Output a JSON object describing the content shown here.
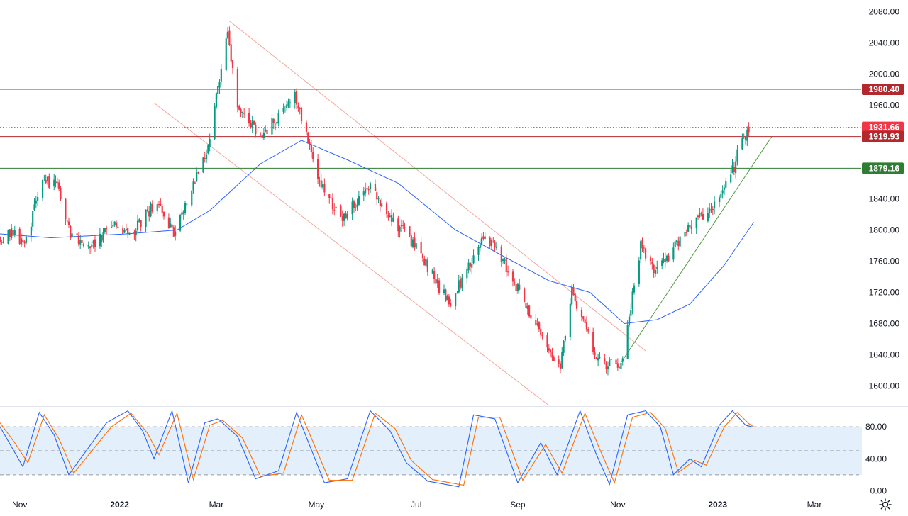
{
  "chart_data": [
    {
      "type": "candlestick",
      "title": "",
      "x_axis": {
        "ticks": [
          "Nov",
          "2022",
          "Mar",
          "May",
          "Jul",
          "Sep",
          "Nov",
          "2023",
          "Mar"
        ],
        "range": [
          "2021-10-20",
          "2023-03-30"
        ]
      },
      "y_axis": {
        "ticks": [
          "1600.00",
          "1640.00",
          "1680.00",
          "1720.00",
          "1760.00",
          "1800.00",
          "1840.00",
          "1880.00",
          "1920.00",
          "1960.00",
          "2000.00",
          "2040.00",
          "2080.00"
        ],
        "range": [
          1575,
          2095
        ],
        "position": "right"
      },
      "horizontal_levels": [
        {
          "label": "1980.40",
          "value": 1980.4,
          "color": "#b2282d",
          "style": "solid"
        },
        {
          "label": "1931.66",
          "value": 1931.66,
          "color": "#f23645",
          "style": "dotted"
        },
        {
          "label": "1919.93",
          "value": 1919.93,
          "color": "#b2282d",
          "style": "solid"
        },
        {
          "label": "1879.16",
          "value": 1879.16,
          "color": "#2e7d32",
          "style": "solid"
        }
      ],
      "price_path": [
        {
          "date": "2021-10-20",
          "close": 1790
        },
        {
          "date": "2021-10-28",
          "close": 1795
        },
        {
          "date": "2021-11-04",
          "close": 1785
        },
        {
          "date": "2021-11-16",
          "close": 1865
        },
        {
          "date": "2021-11-25",
          "close": 1855
        },
        {
          "date": "2021-12-02",
          "close": 1790
        },
        {
          "date": "2021-12-15",
          "close": 1780
        },
        {
          "date": "2021-12-28",
          "close": 1805
        },
        {
          "date": "2022-01-10",
          "close": 1800
        },
        {
          "date": "2022-01-25",
          "close": 1840
        },
        {
          "date": "2022-02-03",
          "close": 1795
        },
        {
          "date": "2022-02-24",
          "close": 1910
        },
        {
          "date": "2022-03-08",
          "close": 2050
        },
        {
          "date": "2022-03-14",
          "close": 1960
        },
        {
          "date": "2022-03-29",
          "close": 1920
        },
        {
          "date": "2022-04-18",
          "close": 1975
        },
        {
          "date": "2022-05-02",
          "close": 1870
        },
        {
          "date": "2022-05-16",
          "close": 1810
        },
        {
          "date": "2022-06-03",
          "close": 1860
        },
        {
          "date": "2022-06-14",
          "close": 1820
        },
        {
          "date": "2022-07-01",
          "close": 1780
        },
        {
          "date": "2022-07-21",
          "close": 1705
        },
        {
          "date": "2022-08-12",
          "close": 1795
        },
        {
          "date": "2022-08-26",
          "close": 1750
        },
        {
          "date": "2022-09-15",
          "close": 1665
        },
        {
          "date": "2022-09-27",
          "close": 1625
        },
        {
          "date": "2022-10-04",
          "close": 1720
        },
        {
          "date": "2022-10-20",
          "close": 1630
        },
        {
          "date": "2022-11-03",
          "close": 1630
        },
        {
          "date": "2022-11-15",
          "close": 1780
        },
        {
          "date": "2022-11-25",
          "close": 1745
        },
        {
          "date": "2022-12-13",
          "close": 1800
        },
        {
          "date": "2022-12-30",
          "close": 1830
        },
        {
          "date": "2023-01-11",
          "close": 1880
        },
        {
          "date": "2023-01-16",
          "close": 1920
        },
        {
          "date": "2023-01-20",
          "close": 1925
        }
      ],
      "moving_average": [
        {
          "date": "2021-10-20",
          "value": 1795
        },
        {
          "date": "2021-11-20",
          "value": 1790
        },
        {
          "date": "2022-01-05",
          "value": 1795
        },
        {
          "date": "2022-02-05",
          "value": 1800
        },
        {
          "date": "2022-02-25",
          "value": 1825
        },
        {
          "date": "2022-03-28",
          "value": 1885
        },
        {
          "date": "2022-04-22",
          "value": 1915
        },
        {
          "date": "2022-05-20",
          "value": 1890
        },
        {
          "date": "2022-06-20",
          "value": 1860
        },
        {
          "date": "2022-07-25",
          "value": 1800
        },
        {
          "date": "2022-08-20",
          "value": 1770
        },
        {
          "date": "2022-09-20",
          "value": 1735
        },
        {
          "date": "2022-10-15",
          "value": 1720
        },
        {
          "date": "2022-11-05",
          "value": 1680
        },
        {
          "date": "2022-11-25",
          "value": 1685
        },
        {
          "date": "2022-12-15",
          "value": 1705
        },
        {
          "date": "2023-01-05",
          "value": 1755
        },
        {
          "date": "2023-01-23",
          "value": 1810
        }
      ],
      "trend_lines": [
        {
          "name": "channel-upper",
          "color": "#f4a8a0",
          "from": {
            "date": "2022-03-09",
            "value": 2068
          },
          "to": {
            "date": "2022-11-18",
            "value": 1645
          }
        },
        {
          "name": "channel-lower",
          "color": "#f4a8a0",
          "from": {
            "date": "2022-01-22",
            "value": 1963
          },
          "to": {
            "date": "2022-09-20",
            "value": 1575
          }
        },
        {
          "name": "ascending-support",
          "color": "#4f9a3d",
          "from": {
            "date": "2022-11-03",
            "value": 1630
          },
          "to": {
            "date": "2023-02-03",
            "value": 1920
          }
        }
      ],
      "up_color": "#089981",
      "down_color": "#f23645",
      "ma_color": "#2962ff"
    },
    {
      "type": "line",
      "title": "",
      "y_axis": {
        "ticks": [
          "0.00",
          "40.00",
          "80.00"
        ],
        "range": [
          -5,
          105
        ],
        "position": "right"
      },
      "guide_levels": [
        20,
        50,
        80
      ],
      "band": [
        20,
        80
      ],
      "band_color": "#e3effb",
      "series": [
        {
          "color": "#2962ff",
          "points": [
            {
              "date": "2021-10-20",
              "value": 80
            },
            {
              "date": "2021-10-27",
              "value": 55
            },
            {
              "date": "2021-11-03",
              "value": 30
            },
            {
              "date": "2021-11-13",
              "value": 98
            },
            {
              "date": "2021-11-22",
              "value": 70
            },
            {
              "date": "2021-12-01",
              "value": 20
            },
            {
              "date": "2021-12-24",
              "value": 85
            },
            {
              "date": "2022-01-06",
              "value": 100
            },
            {
              "date": "2022-01-15",
              "value": 75
            },
            {
              "date": "2022-01-22",
              "value": 40
            },
            {
              "date": "2022-02-02",
              "value": 100
            },
            {
              "date": "2022-02-12",
              "value": 10
            },
            {
              "date": "2022-02-22",
              "value": 85
            },
            {
              "date": "2022-03-02",
              "value": 90
            },
            {
              "date": "2022-03-14",
              "value": 68
            },
            {
              "date": "2022-03-25",
              "value": 15
            },
            {
              "date": "2022-04-08",
              "value": 25
            },
            {
              "date": "2022-04-19",
              "value": 98
            },
            {
              "date": "2022-05-06",
              "value": 10
            },
            {
              "date": "2022-05-20",
              "value": 15
            },
            {
              "date": "2022-06-03",
              "value": 100
            },
            {
              "date": "2022-06-15",
              "value": 75
            },
            {
              "date": "2022-06-25",
              "value": 35
            },
            {
              "date": "2022-07-08",
              "value": 12
            },
            {
              "date": "2022-07-27",
              "value": 5
            },
            {
              "date": "2022-08-05",
              "value": 95
            },
            {
              "date": "2022-08-18",
              "value": 90
            },
            {
              "date": "2022-09-01",
              "value": 10
            },
            {
              "date": "2022-09-15",
              "value": 60
            },
            {
              "date": "2022-09-25",
              "value": 20
            },
            {
              "date": "2022-10-09",
              "value": 100
            },
            {
              "date": "2022-10-18",
              "value": 50
            },
            {
              "date": "2022-10-27",
              "value": 8
            },
            {
              "date": "2022-11-07",
              "value": 95
            },
            {
              "date": "2022-11-18",
              "value": 100
            },
            {
              "date": "2022-11-27",
              "value": 80
            },
            {
              "date": "2022-12-05",
              "value": 20
            },
            {
              "date": "2022-12-15",
              "value": 40
            },
            {
              "date": "2022-12-22",
              "value": 30
            },
            {
              "date": "2023-01-02",
              "value": 82
            },
            {
              "date": "2023-01-10",
              "value": 100
            },
            {
              "date": "2023-01-18",
              "value": 82
            },
            {
              "date": "2023-01-22",
              "value": 80
            }
          ]
        },
        {
          "color": "#ff6d00",
          "points": [
            {
              "date": "2021-10-20",
              "value": 85
            },
            {
              "date": "2021-10-29",
              "value": 60
            },
            {
              "date": "2021-11-06",
              "value": 35
            },
            {
              "date": "2021-11-16",
              "value": 95
            },
            {
              "date": "2021-11-25",
              "value": 65
            },
            {
              "date": "2021-12-04",
              "value": 22
            },
            {
              "date": "2021-12-27",
              "value": 80
            },
            {
              "date": "2022-01-08",
              "value": 97
            },
            {
              "date": "2022-01-18",
              "value": 72
            },
            {
              "date": "2022-01-25",
              "value": 45
            },
            {
              "date": "2022-02-05",
              "value": 97
            },
            {
              "date": "2022-02-15",
              "value": 14
            },
            {
              "date": "2022-02-25",
              "value": 82
            },
            {
              "date": "2022-03-05",
              "value": 88
            },
            {
              "date": "2022-03-17",
              "value": 66
            },
            {
              "date": "2022-03-28",
              "value": 18
            },
            {
              "date": "2022-04-11",
              "value": 22
            },
            {
              "date": "2022-04-22",
              "value": 95
            },
            {
              "date": "2022-05-09",
              "value": 13
            },
            {
              "date": "2022-05-23",
              "value": 13
            },
            {
              "date": "2022-06-06",
              "value": 97
            },
            {
              "date": "2022-06-18",
              "value": 78
            },
            {
              "date": "2022-06-28",
              "value": 38
            },
            {
              "date": "2022-07-11",
              "value": 14
            },
            {
              "date": "2022-07-30",
              "value": 7
            },
            {
              "date": "2022-08-08",
              "value": 92
            },
            {
              "date": "2022-08-21",
              "value": 92
            },
            {
              "date": "2022-09-04",
              "value": 13
            },
            {
              "date": "2022-09-18",
              "value": 58
            },
            {
              "date": "2022-09-28",
              "value": 22
            },
            {
              "date": "2022-10-12",
              "value": 97
            },
            {
              "date": "2022-10-21",
              "value": 52
            },
            {
              "date": "2022-10-30",
              "value": 10
            },
            {
              "date": "2022-11-10",
              "value": 92
            },
            {
              "date": "2022-11-21",
              "value": 98
            },
            {
              "date": "2022-11-30",
              "value": 78
            },
            {
              "date": "2022-12-08",
              "value": 23
            },
            {
              "date": "2022-12-18",
              "value": 38
            },
            {
              "date": "2022-12-25",
              "value": 32
            },
            {
              "date": "2023-01-05",
              "value": 80
            },
            {
              "date": "2023-01-13",
              "value": 98
            },
            {
              "date": "2023-01-20",
              "value": 84
            },
            {
              "date": "2023-01-23",
              "value": 80
            }
          ]
        }
      ]
    }
  ],
  "icons": {
    "settings": "gear-icon"
  }
}
